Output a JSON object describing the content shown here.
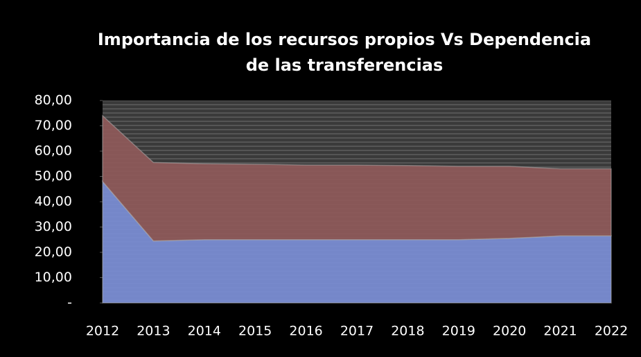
{
  "chart_data": {
    "type": "stacked_area",
    "title": [
      "Importancia de los recursos propios Vs Dependencia",
      "de las transferencias"
    ],
    "categories": [
      "2012",
      "2013",
      "2014",
      "2015",
      "2016",
      "2017",
      "2018",
      "2019",
      "2020",
      "2021",
      "2022"
    ],
    "series": [
      {
        "color": "#7b8ed6",
        "values": [
          48,
          24.5,
          25,
          25,
          25,
          25,
          25,
          25,
          25.5,
          26.5,
          26.5
        ]
      },
      {
        "color": "#8f5a5a",
        "values": [
          26,
          31,
          30,
          29.8,
          29.5,
          29.5,
          29.3,
          29,
          28.5,
          26.5,
          26.5
        ]
      }
    ],
    "ylim": [
      0,
      80
    ],
    "yticks": [
      {
        "value": 0,
        "label": "-"
      },
      {
        "value": 10,
        "label": "10,00"
      },
      {
        "value": 20,
        "label": "20,00"
      },
      {
        "value": 30,
        "label": "30,00"
      },
      {
        "value": 40,
        "label": "40,00"
      },
      {
        "value": 50,
        "label": "50,00"
      },
      {
        "value": 60,
        "label": "60,00"
      },
      {
        "value": 70,
        "label": "70,00"
      },
      {
        "value": 80,
        "label": "80,00"
      }
    ]
  }
}
